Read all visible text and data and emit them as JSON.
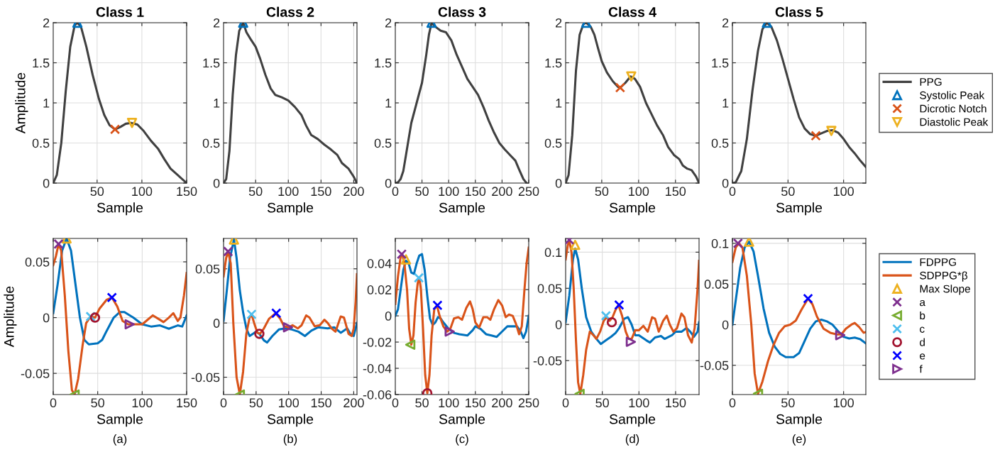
{
  "chart_data": [
    {
      "type": "line",
      "title": "Class 1",
      "xlabel": "Sample",
      "ylabel": "Amplitude",
      "xlim": [
        1,
        150
      ],
      "xticks": [
        50,
        100,
        150
      ],
      "ylim": [
        0,
        2
      ],
      "yticks": [
        0,
        0.5,
        1,
        1.5,
        2
      ],
      "grid": true,
      "legend": false,
      "series": [
        {
          "color": "#404040",
          "x": [
            1,
            5,
            10,
            15,
            20,
            25,
            28,
            32,
            38,
            45,
            52,
            58,
            64,
            70,
            76,
            82,
            88,
            95,
            102,
            110,
            118,
            125,
            132,
            140,
            150
          ],
          "values": [
            0,
            0.1,
            0.5,
            1.15,
            1.7,
            1.97,
            2,
            1.95,
            1.7,
            1.35,
            1.05,
            0.85,
            0.72,
            0.67,
            0.7,
            0.74,
            0.75,
            0.73,
            0.65,
            0.53,
            0.43,
            0.3,
            0.18,
            0.1,
            0
          ]
        },
        {
          "type": "scatter",
          "marker": "triangle",
          "color": "#0072bd",
          "x": [
            28
          ],
          "values": [
            2
          ]
        },
        {
          "type": "scatter",
          "marker": "cross",
          "color": "#d95319",
          "x": [
            70
          ],
          "values": [
            0.67
          ]
        },
        {
          "type": "scatter",
          "marker": "triangle_down",
          "color": "#edb120",
          "x": [
            89
          ],
          "values": [
            0.75
          ]
        }
      ]
    },
    {
      "type": "line",
      "title": "Class 2",
      "xlabel": "Sample",
      "xlim": [
        1,
        205
      ],
      "xticks": [
        50,
        100,
        150,
        200
      ],
      "ylim": [
        0,
        2
      ],
      "yticks": [
        0,
        0.5,
        1,
        1.5,
        2
      ],
      "grid": true,
      "legend": false,
      "series": [
        {
          "color": "#404040",
          "x": [
            1,
            5,
            10,
            15,
            20,
            25,
            31,
            36,
            42,
            50,
            57,
            65,
            73,
            80,
            90,
            100,
            110,
            120,
            127,
            135,
            145,
            155,
            165,
            175,
            182,
            192,
            200,
            205
          ],
          "values": [
            0,
            0.05,
            0.4,
            1.1,
            1.6,
            1.9,
            2,
            1.88,
            1.8,
            1.7,
            1.55,
            1.35,
            1.18,
            1.1,
            1.07,
            1.03,
            0.95,
            0.85,
            0.72,
            0.6,
            0.55,
            0.48,
            0.42,
            0.35,
            0.25,
            0.18,
            0.08,
            0
          ]
        },
        {
          "type": "scatter",
          "marker": "triangle",
          "color": "#0072bd",
          "x": [
            31
          ],
          "values": [
            2
          ]
        }
      ]
    },
    {
      "type": "line",
      "title": "Class 3",
      "xlabel": "Sample",
      "xlim": [
        0,
        250
      ],
      "xticks": [
        0,
        50,
        100,
        150,
        200,
        250
      ],
      "ylim": [
        0,
        2
      ],
      "yticks": [
        0,
        0.5,
        1,
        1.5,
        2
      ],
      "grid": true,
      "legend": false,
      "series": [
        {
          "color": "#404040",
          "x": [
            0,
            5,
            10,
            15,
            20,
            25,
            30,
            40,
            50,
            58,
            63,
            68,
            75,
            85,
            95,
            105,
            115,
            125,
            135,
            145,
            155,
            165,
            175,
            185,
            195,
            205,
            215,
            225,
            232,
            240,
            246
          ],
          "values": [
            0,
            0.01,
            0.05,
            0.15,
            0.35,
            0.55,
            0.75,
            1.0,
            1.25,
            1.6,
            1.85,
            2,
            1.95,
            1.9,
            1.88,
            1.78,
            1.6,
            1.45,
            1.3,
            1.2,
            1.1,
            0.95,
            0.78,
            0.63,
            0.5,
            0.42,
            0.35,
            0.28,
            0.17,
            0.05,
            0
          ]
        },
        {
          "type": "scatter",
          "marker": "triangle",
          "color": "#0072bd",
          "x": [
            68
          ],
          "values": [
            2
          ]
        }
      ]
    },
    {
      "type": "line",
      "title": "Class 4",
      "xlabel": "Sample",
      "xlim": [
        1,
        182
      ],
      "xticks": [
        50,
        100,
        150
      ],
      "ylim": [
        0,
        2
      ],
      "yticks": [
        0,
        0.5,
        1,
        1.5,
        2
      ],
      "grid": true,
      "legend": false,
      "series": [
        {
          "color": "#404040",
          "x": [
            1,
            5,
            10,
            15,
            20,
            25,
            29,
            35,
            40,
            45,
            50,
            57,
            65,
            72,
            75,
            82,
            89,
            95,
            102,
            110,
            118,
            125,
            133,
            140,
            148,
            155,
            160,
            166,
            172,
            178,
            182
          ],
          "values": [
            0,
            0.1,
            0.6,
            1.4,
            1.85,
            1.98,
            2,
            1.95,
            1.85,
            1.68,
            1.52,
            1.38,
            1.27,
            1.2,
            1.19,
            1.25,
            1.33,
            1.3,
            1.2,
            1.0,
            0.85,
            0.72,
            0.6,
            0.45,
            0.35,
            0.3,
            0.22,
            0.18,
            0.16,
            0.08,
            0
          ]
        },
        {
          "type": "scatter",
          "marker": "triangle",
          "color": "#0072bd",
          "x": [
            29
          ],
          "values": [
            2
          ]
        },
        {
          "type": "scatter",
          "marker": "cross",
          "color": "#d95319",
          "x": [
            75
          ],
          "values": [
            1.19
          ]
        },
        {
          "type": "scatter",
          "marker": "triangle_down",
          "color": "#edb120",
          "x": [
            90
          ],
          "values": [
            1.33
          ]
        }
      ]
    },
    {
      "type": "line",
      "title": "Class 5",
      "xlabel": "Sample",
      "xlim": [
        0,
        120
      ],
      "xticks": [
        0,
        50,
        100
      ],
      "ylim": [
        0,
        2
      ],
      "yticks": [
        0,
        0.5,
        1,
        1.5,
        2
      ],
      "grid": true,
      "legend": "right",
      "series": [
        {
          "name": "PPG",
          "color": "#404040",
          "x": [
            0,
            3,
            8,
            13,
            18,
            23,
            27,
            31,
            35,
            40,
            45,
            50,
            55,
            60,
            65,
            70,
            75,
            80,
            85,
            90,
            95,
            100,
            105,
            110,
            115,
            120
          ],
          "values": [
            0,
            0.01,
            0.15,
            0.55,
            1.15,
            1.65,
            1.92,
            2,
            1.95,
            1.78,
            1.55,
            1.3,
            1.05,
            0.82,
            0.68,
            0.61,
            0.59,
            0.62,
            0.65,
            0.66,
            0.63,
            0.55,
            0.45,
            0.37,
            0.28,
            0.2
          ]
        },
        {
          "name": "Systolic Peak",
          "type": "scatter",
          "marker": "triangle",
          "color": "#0072bd",
          "x": [
            31
          ],
          "values": [
            2
          ]
        },
        {
          "name": "Dicrotic Notch",
          "type": "scatter",
          "marker": "cross",
          "color": "#d95319",
          "x": [
            75
          ],
          "values": [
            0.59
          ]
        },
        {
          "name": "Diastolic Peak",
          "type": "scatter",
          "marker": "triangle_down",
          "color": "#edb120",
          "x": [
            89
          ],
          "values": [
            0.65
          ]
        }
      ]
    },
    {
      "type": "line",
      "xlabel": "Sample",
      "ylabel": "Amplitude",
      "annotations": [
        "(a)"
      ],
      "xlim": [
        0,
        150
      ],
      "xticks": [
        0,
        50,
        100,
        150
      ],
      "ylim": [
        -0.069,
        0.071
      ],
      "yticks": [
        -0.05,
        0,
        0.05
      ],
      "grid": true,
      "legend": false,
      "series": [
        {
          "color": "#0072bd",
          "x": [
            0,
            5,
            10,
            15,
            20,
            25,
            30,
            35,
            40,
            50,
            55,
            60,
            68,
            75,
            80,
            90,
            100,
            110,
            120,
            130,
            140,
            145,
            150
          ],
          "values": [
            0.004,
            0.03,
            0.06,
            0.071,
            0.06,
            0.03,
            0.0,
            -0.02,
            -0.024,
            -0.023,
            -0.02,
            -0.012,
            0.0,
            0.005,
            0.005,
            0.0,
            -0.006,
            -0.008,
            -0.007,
            -0.01,
            -0.007,
            -0.008,
            0.002
          ]
        },
        {
          "color": "#d95319",
          "x": [
            0,
            3,
            6,
            9,
            13,
            17,
            21,
            24,
            28,
            33,
            37,
            42,
            47,
            52,
            60,
            66,
            72,
            78,
            84,
            90,
            100,
            106,
            112,
            118,
            124,
            130,
            135,
            140,
            143,
            147,
            150
          ],
          "values": [
            0.047,
            0.055,
            0.066,
            0.06,
            0.02,
            -0.03,
            -0.065,
            -0.069,
            -0.055,
            -0.025,
            -0.005,
            0.001,
            0.0,
            0.008,
            0.016,
            0.018,
            0.01,
            -0.003,
            -0.006,
            -0.006,
            -0.006,
            -0.002,
            0.002,
            -0.001,
            -0.004,
            0.0,
            0.004,
            -0.003,
            0.0,
            0.02,
            0.04
          ]
        },
        {
          "type": "scatter",
          "marker": "triangle",
          "color": "#edb120",
          "x": [
            15
          ],
          "values": [
            0.071
          ]
        },
        {
          "type": "scatter",
          "marker": "cross",
          "color": "#7e2f8e",
          "x": [
            6
          ],
          "values": [
            0.066
          ]
        },
        {
          "type": "scatter",
          "marker": "triangle_left",
          "color": "#77ac30",
          "x": [
            24
          ],
          "values": [
            -0.069
          ]
        },
        {
          "type": "scatter",
          "marker": "cross",
          "color": "#4dbeee",
          "x": [
            42
          ],
          "values": [
            0.001
          ]
        },
        {
          "type": "scatter",
          "marker": "circle",
          "color": "#a2142f",
          "x": [
            47
          ],
          "values": [
            0.0
          ]
        },
        {
          "type": "scatter",
          "marker": "cross",
          "color": "#0000ff",
          "x": [
            66
          ],
          "values": [
            0.018
          ]
        },
        {
          "type": "scatter",
          "marker": "triangle_right",
          "color": "#7e2f8e",
          "x": [
            86
          ],
          "values": [
            -0.006
          ]
        }
      ]
    },
    {
      "type": "line",
      "xlabel": "Sample",
      "annotations": [
        "(b)"
      ],
      "xlim": [
        0,
        205
      ],
      "xticks": [
        0,
        50,
        100,
        150,
        200
      ],
      "ylim": [
        -0.066,
        0.078
      ],
      "yticks": [
        -0.05,
        0,
        0.05
      ],
      "grid": true,
      "legend": false,
      "series": [
        {
          "color": "#0072bd",
          "x": [
            0,
            5,
            10,
            16,
            20,
            25,
            30,
            35,
            40,
            45,
            50,
            55,
            62,
            67,
            75,
            85,
            95,
            105,
            115,
            125,
            135,
            145,
            160,
            170,
            180,
            190,
            195,
            200,
            205
          ],
          "values": [
            0.002,
            0.03,
            0.06,
            0.077,
            0.06,
            0.03,
            0.01,
            -0.005,
            -0.012,
            -0.01,
            -0.008,
            -0.01,
            -0.016,
            -0.018,
            -0.012,
            -0.006,
            -0.005,
            -0.006,
            -0.008,
            -0.012,
            -0.007,
            -0.004,
            -0.005,
            -0.004,
            -0.009,
            -0.005,
            -0.01,
            -0.012,
            0.0
          ]
        },
        {
          "color": "#d95319",
          "x": [
            0,
            4,
            7,
            11,
            15,
            20,
            25,
            30,
            35,
            40,
            43,
            47,
            52,
            56,
            62,
            70,
            80,
            87,
            93,
            100,
            106,
            114,
            120,
            127,
            132,
            140,
            148,
            155,
            160,
            166,
            172,
            180,
            185,
            192,
            197,
            200,
            203,
            205
          ],
          "values": [
            0.043,
            0.06,
            0.066,
            0.055,
            0.0,
            -0.05,
            -0.066,
            -0.045,
            -0.01,
            0.005,
            0.008,
            0.0,
            -0.009,
            -0.01,
            -0.005,
            0.004,
            0.009,
            0.004,
            -0.003,
            -0.004,
            -0.002,
            -0.005,
            -0.002,
            0.007,
            0.005,
            -0.003,
            -0.002,
            0.003,
            0.0,
            -0.005,
            -0.008,
            0.006,
            0.005,
            -0.01,
            -0.012,
            -0.005,
            0.02,
            0.045
          ]
        },
        {
          "type": "scatter",
          "marker": "triangle",
          "color": "#edb120",
          "x": [
            16
          ],
          "values": [
            0.077
          ]
        },
        {
          "type": "scatter",
          "marker": "cross",
          "color": "#7e2f8e",
          "x": [
            7
          ],
          "values": [
            0.066
          ]
        },
        {
          "type": "scatter",
          "marker": "triangle_left",
          "color": "#77ac30",
          "x": [
            25
          ],
          "values": [
            -0.066
          ]
        },
        {
          "type": "scatter",
          "marker": "cross",
          "color": "#4dbeee",
          "x": [
            43
          ],
          "values": [
            0.008
          ]
        },
        {
          "type": "scatter",
          "marker": "circle",
          "color": "#a2142f",
          "x": [
            55
          ],
          "values": [
            -0.01
          ]
        },
        {
          "type": "scatter",
          "marker": "cross",
          "color": "#0000ff",
          "x": [
            81
          ],
          "values": [
            0.009
          ]
        },
        {
          "type": "scatter",
          "marker": "triangle_right",
          "color": "#7e2f8e",
          "x": [
            99
          ],
          "values": [
            -0.004
          ]
        }
      ]
    },
    {
      "type": "line",
      "xlabel": "Sample",
      "annotations": [
        "(c)"
      ],
      "xlim": [
        0,
        250
      ],
      "xticks": [
        0,
        50,
        100,
        150,
        200,
        250
      ],
      "ylim": [
        -0.06,
        0.059
      ],
      "yticks": [
        -0.06,
        -0.04,
        -0.02,
        0,
        0.02,
        0.04
      ],
      "grid": true,
      "legend": false,
      "series": [
        {
          "color": "#0072bd",
          "x": [
            0,
            5,
            10,
            15,
            20,
            25,
            30,
            35,
            40,
            45,
            50,
            55,
            60,
            65,
            70,
            75,
            80,
            85,
            90,
            100,
            110,
            120,
            135,
            145,
            150,
            160,
            170,
            180,
            190,
            200,
            210,
            220,
            228,
            235,
            240,
            245,
            250
          ],
          "values": [
            0.0,
            0.005,
            0.02,
            0.035,
            0.042,
            0.04,
            0.033,
            0.032,
            0.04,
            0.046,
            0.047,
            0.035,
            0.015,
            -0.002,
            -0.007,
            -0.005,
            -0.001,
            -0.002,
            -0.005,
            -0.01,
            -0.013,
            -0.014,
            -0.015,
            -0.011,
            -0.008,
            -0.01,
            -0.014,
            -0.015,
            -0.016,
            -0.012,
            -0.008,
            -0.008,
            -0.008,
            -0.012,
            -0.017,
            -0.012,
            0.0
          ]
        },
        {
          "color": "#d95319",
          "x": [
            0,
            5,
            10,
            13,
            17,
            22,
            26,
            30,
            34,
            38,
            42,
            45,
            48,
            52,
            56,
            60,
            64,
            68,
            73,
            78,
            83,
            90,
            97,
            103,
            110,
            118,
            125,
            133,
            140,
            145,
            150,
            157,
            165,
            172,
            178,
            185,
            193,
            200,
            207,
            213,
            220,
            226,
            232,
            237,
            242,
            246,
            250
          ],
          "values": [
            0.009,
            0.03,
            0.045,
            0.047,
            0.04,
            0.02,
            -0.01,
            -0.022,
            -0.015,
            0.01,
            0.025,
            0.029,
            0.02,
            -0.01,
            -0.045,
            -0.059,
            -0.045,
            -0.015,
            0.005,
            0.008,
            0.0,
            -0.008,
            -0.012,
            -0.01,
            -0.002,
            -0.001,
            -0.003,
            0.006,
            0.011,
            0.005,
            -0.005,
            -0.009,
            -0.001,
            -0.001,
            -0.003,
            0.005,
            0.012,
            0.008,
            -0.001,
            0.001,
            0.0,
            -0.006,
            -0.014,
            -0.008,
            0.02,
            0.04,
            0.052
          ]
        },
        {
          "type": "scatter",
          "marker": "triangle",
          "color": "#edb120",
          "x": [
            20
          ],
          "values": [
            0.043
          ]
        },
        {
          "type": "scatter",
          "marker": "cross",
          "color": "#7e2f8e",
          "x": [
            12
          ],
          "values": [
            0.047
          ]
        },
        {
          "type": "scatter",
          "marker": "triangle_left",
          "color": "#77ac30",
          "x": [
            28
          ],
          "values": [
            -0.022
          ]
        },
        {
          "type": "scatter",
          "marker": "cross",
          "color": "#4dbeee",
          "x": [
            44
          ],
          "values": [
            0.029
          ]
        },
        {
          "type": "scatter",
          "marker": "circle",
          "color": "#a2142f",
          "x": [
            60
          ],
          "values": [
            -0.059
          ]
        },
        {
          "type": "scatter",
          "marker": "cross",
          "color": "#0000ff",
          "x": [
            79
          ],
          "values": [
            0.008
          ]
        },
        {
          "type": "scatter",
          "marker": "triangle_right",
          "color": "#7e2f8e",
          "x": [
            102
          ],
          "values": [
            -0.012
          ]
        }
      ]
    },
    {
      "type": "line",
      "xlabel": "Sample",
      "annotations": [
        "(d)"
      ],
      "xlim": [
        0,
        182
      ],
      "xticks": [
        0,
        50,
        100,
        150
      ],
      "ylim": [
        -0.097,
        0.119
      ],
      "yticks": [
        -0.05,
        0,
        0.05,
        0.1
      ],
      "grid": true,
      "legend": false,
      "series": [
        {
          "color": "#0072bd",
          "x": [
            0,
            5,
            10,
            13,
            17,
            22,
            28,
            35,
            42,
            48,
            55,
            62,
            68,
            73,
            80,
            85,
            90,
            95,
            100,
            110,
            115,
            122,
            130,
            135,
            145,
            150,
            158,
            165,
            170,
            175,
            180,
            182
          ],
          "values": [
            0.003,
            0.04,
            0.09,
            0.105,
            0.09,
            0.05,
            0.01,
            -0.01,
            -0.02,
            -0.027,
            -0.022,
            -0.017,
            -0.012,
            -0.005,
            0.008,
            0.01,
            0.0,
            -0.015,
            -0.015,
            -0.022,
            -0.025,
            -0.018,
            -0.016,
            -0.02,
            -0.015,
            -0.01,
            -0.01,
            -0.005,
            -0.01,
            -0.017,
            -0.01,
            0.003
          ]
        },
        {
          "color": "#d95319",
          "x": [
            0,
            3,
            5,
            8,
            11,
            14,
            17,
            20,
            24,
            28,
            33,
            38,
            42,
            47,
            52,
            56,
            60,
            64,
            68,
            72,
            77,
            82,
            86,
            90,
            95,
            100,
            106,
            112,
            118,
            122,
            127,
            133,
            138,
            142,
            147,
            152,
            158,
            162,
            167,
            172,
            176,
            180,
            182
          ],
          "values": [
            0.09,
            0.11,
            0.116,
            0.1,
            0.05,
            -0.02,
            -0.08,
            -0.096,
            -0.07,
            -0.035,
            -0.01,
            -0.015,
            -0.02,
            -0.01,
            0.005,
            0.01,
            0.005,
            0.01,
            0.02,
            0.027,
            0.012,
            -0.01,
            -0.02,
            -0.02,
            -0.008,
            -0.008,
            -0.002,
            -0.01,
            0.01,
            0.008,
            -0.01,
            0.005,
            0.012,
            0.0,
            -0.01,
            -0.005,
            0.015,
            0.01,
            -0.015,
            -0.025,
            -0.005,
            0.05,
            0.088
          ]
        },
        {
          "type": "scatter",
          "marker": "triangle",
          "color": "#edb120",
          "x": [
            13
          ],
          "values": [
            0.11
          ]
        },
        {
          "type": "scatter",
          "marker": "cross",
          "color": "#7e2f8e",
          "x": [
            5
          ],
          "values": [
            0.117
          ]
        },
        {
          "type": "scatter",
          "marker": "triangle_left",
          "color": "#77ac30",
          "x": [
            19
          ],
          "values": [
            -0.096
          ]
        },
        {
          "type": "scatter",
          "marker": "cross",
          "color": "#4dbeee",
          "x": [
            55
          ],
          "values": [
            0.012
          ]
        },
        {
          "type": "scatter",
          "marker": "circle",
          "color": "#a2142f",
          "x": [
            63
          ],
          "values": [
            0.003
          ]
        },
        {
          "type": "scatter",
          "marker": "cross",
          "color": "#0000ff",
          "x": [
            73
          ],
          "values": [
            0.027
          ]
        },
        {
          "type": "scatter",
          "marker": "triangle_right",
          "color": "#7e2f8e",
          "x": [
            89
          ],
          "values": [
            -0.024
          ]
        }
      ]
    },
    {
      "type": "line",
      "xlabel": "Sample",
      "annotations": [
        "(e)"
      ],
      "xlim": [
        0,
        120
      ],
      "xticks": [
        0,
        50,
        100
      ],
      "ylim": [
        -0.086,
        0.106
      ],
      "yticks": [
        -0.05,
        0,
        0.05,
        0.1
      ],
      "grid": true,
      "legend": "right",
      "series": [
        {
          "name": "FDPPG",
          "color": "#0072bd",
          "x": [
            0,
            3,
            7,
            11,
            15,
            19,
            23,
            28,
            33,
            38,
            43,
            48,
            55,
            60,
            65,
            70,
            75,
            80,
            85,
            90,
            95,
            100,
            105,
            110,
            115,
            120
          ],
          "values": [
            0.0,
            0.03,
            0.07,
            0.095,
            0.102,
            0.09,
            0.06,
            0.02,
            -0.01,
            -0.027,
            -0.036,
            -0.04,
            -0.04,
            -0.035,
            -0.02,
            -0.005,
            0.004,
            0.006,
            0.004,
            0.0,
            -0.008,
            -0.015,
            -0.017,
            -0.016,
            -0.018,
            -0.023
          ]
        },
        {
          "name": "SDPPG*β",
          "color": "#d95319",
          "x": [
            0,
            3,
            6,
            9,
            13,
            17,
            20,
            23,
            27,
            32,
            37,
            42,
            47,
            52,
            57,
            62,
            68,
            72,
            76,
            82,
            88,
            94,
            98,
            102,
            107,
            110,
            114,
            118,
            120
          ],
          "values": [
            0.077,
            0.095,
            0.1,
            0.095,
            0.06,
            0.0,
            -0.06,
            -0.085,
            -0.07,
            -0.045,
            -0.025,
            -0.01,
            -0.002,
            0.0,
            0.005,
            0.018,
            0.032,
            0.025,
            0.01,
            -0.005,
            -0.01,
            -0.012,
            -0.012,
            -0.005,
            0.0,
            0.002,
            -0.003,
            -0.01,
            -0.009
          ]
        },
        {
          "name": "Max Slope",
          "type": "scatter",
          "marker": "triangle",
          "color": "#edb120",
          "x": [
            15
          ],
          "values": [
            0.102
          ]
        },
        {
          "name": "a",
          "type": "scatter",
          "marker": "cross",
          "color": "#7e2f8e",
          "x": [
            5
          ],
          "values": [
            0.1
          ]
        },
        {
          "name": "b",
          "type": "scatter",
          "marker": "triangle_left",
          "color": "#77ac30",
          "x": [
            23
          ],
          "values": [
            -0.085
          ]
        },
        {
          "name": "c",
          "type": "scatter",
          "marker": "cross",
          "color": "#4dbeee"
        },
        {
          "name": "d",
          "type": "scatter",
          "marker": "circle",
          "color": "#a2142f"
        },
        {
          "name": "e",
          "type": "scatter",
          "marker": "cross",
          "color": "#0000ff",
          "x": [
            68
          ],
          "values": [
            0.032
          ]
        },
        {
          "name": "f",
          "type": "scatter",
          "marker": "triangle_right",
          "color": "#7e2f8e",
          "x": [
            97
          ],
          "values": [
            -0.013
          ]
        }
      ]
    }
  ]
}
